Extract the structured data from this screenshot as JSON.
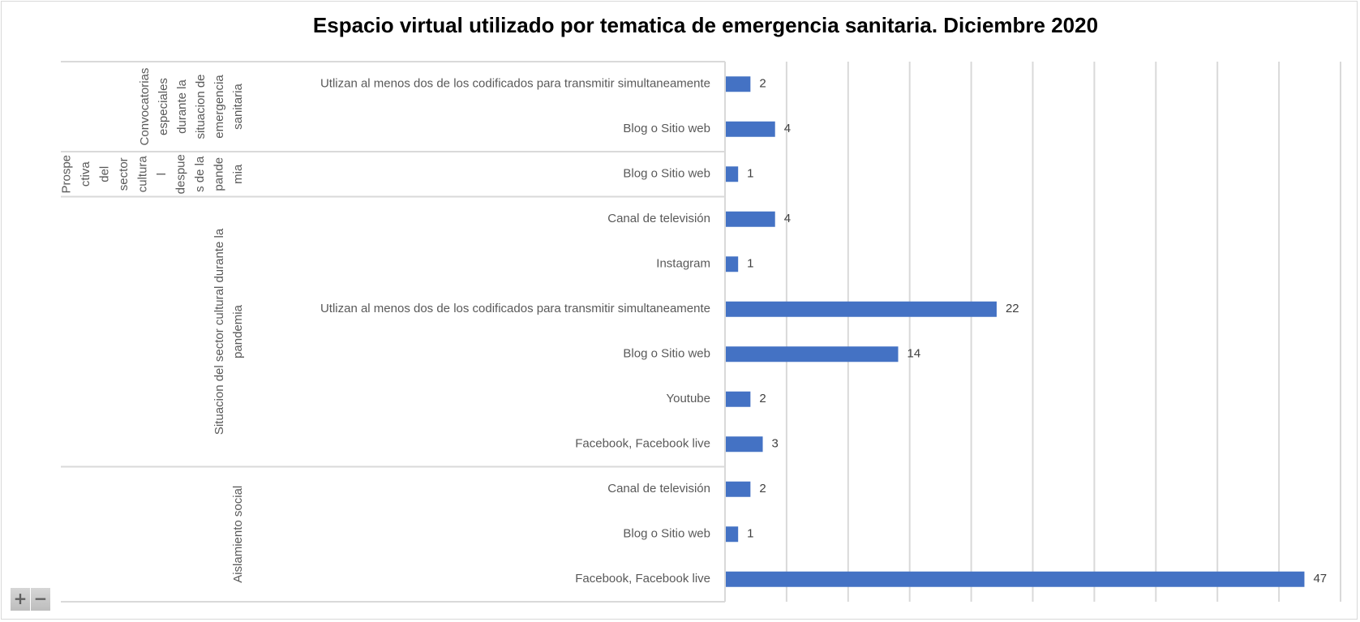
{
  "chart_data": {
    "type": "bar",
    "orientation": "horizontal",
    "title": "Espacio virtual utilizado por tematica de emergencia sanitaria. Diciembre 2020",
    "xlabel": "",
    "ylabel": "",
    "xlim": [
      0,
      50
    ],
    "x_major_step": 5,
    "grid": true,
    "legend": "none",
    "bar_color": "#4472C4",
    "groups": [
      {
        "name": "Convocatorias especiales durante la situacion de emergencia sanitaria",
        "name_lines": [
          "Convocatorias",
          "especiales",
          "durante la",
          "situacion de",
          "emergencia",
          "sanitaria"
        ],
        "categories": [
          "Utlizan al menos dos de los codificados para transmitir simultaneamente",
          "Blog o Sitio web"
        ],
        "values": [
          2,
          4
        ]
      },
      {
        "name": "Prospectiva del sector cultural despues de la pandemia",
        "name_lines": [
          "Prospe",
          "ctiva",
          "del",
          "sector",
          "cultura",
          "l",
          "despue",
          "s de la",
          "pande",
          "mia"
        ],
        "categories": [
          "Blog o Sitio web"
        ],
        "values": [
          1
        ]
      },
      {
        "name": "Situacion del sector cultural durante la pandemia",
        "name_lines": [
          "Situacion del sector cultural durante la",
          "pandemia"
        ],
        "categories": [
          "Canal de televisión ",
          "Instagram",
          "Utlizan al menos dos de los codificados para transmitir simultaneamente",
          "Blog o Sitio web",
          "Youtube",
          "Facebook, Facebook live"
        ],
        "values": [
          4,
          1,
          22,
          14,
          2,
          3
        ]
      },
      {
        "name": "Aislamiento social",
        "name_lines": [
          "Aislamiento social"
        ],
        "categories": [
          "Canal de televisión ",
          "Blog o Sitio web",
          "Facebook, Facebook live"
        ],
        "values": [
          2,
          1,
          47
        ]
      }
    ]
  },
  "controls": {
    "zoom_in": "+",
    "zoom_out": "−"
  }
}
